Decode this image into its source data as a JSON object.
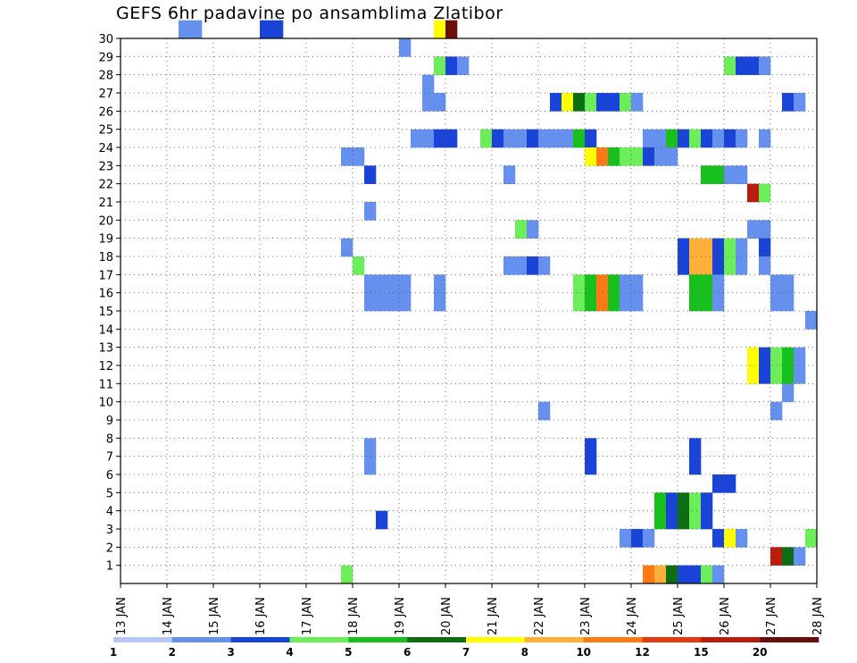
{
  "chart_data": {
    "type": "heatmap",
    "title": "GEFS 6hr padavine po ansamblima Zlatibor",
    "x_ticks": [
      "13 JAN",
      "14 JAN",
      "15 JAN",
      "16 JAN",
      "17 JAN",
      "18 JAN",
      "19 JAN",
      "20 JAN",
      "21 JAN",
      "22 JAN",
      "23 JAN",
      "24 JAN",
      "25 JAN",
      "26 JAN",
      "27 JAN",
      "28 JAN"
    ],
    "y_ticks": [
      "1",
      "2",
      "3",
      "4",
      "5",
      "6",
      "7",
      "8",
      "9",
      "10",
      "11",
      "12",
      "13",
      "14",
      "15",
      "16",
      "17",
      "18",
      "19",
      "20",
      "21",
      "22",
      "23",
      "24",
      "25",
      "26",
      "27",
      "28",
      "29",
      "30"
    ],
    "x_range": [
      "13 JAN 00Z",
      "28 JAN 00Z"
    ],
    "y_range": [
      0,
      30
    ],
    "time_step_hours": 6,
    "grid": "dotted",
    "colorbar": {
      "position": "bottom",
      "labels": [
        "1",
        "2",
        "3",
        "4",
        "5",
        "6",
        "7",
        "8",
        "10",
        "12",
        "15",
        "20"
      ],
      "colors": [
        "#b4c7f5",
        "#6690ee",
        "#1a44d8",
        "#6cee5a",
        "#17c01c",
        "#0b6e12",
        "#ffff00",
        "#ffb03a",
        "#ff7a14",
        "#e63910",
        "#b81d0e",
        "#6a0f0a"
      ]
    },
    "cells": [
      [
        5,
        30,
        1
      ],
      [
        6,
        30,
        1
      ],
      [
        12,
        30,
        2
      ],
      [
        13,
        30,
        2
      ],
      [
        27,
        30,
        6
      ],
      [
        28,
        30,
        11
      ],
      [
        24,
        29,
        1
      ],
      [
        27,
        28,
        3
      ],
      [
        28,
        28,
        2
      ],
      [
        29,
        28,
        1
      ],
      [
        52,
        28,
        3
      ],
      [
        53,
        28,
        2
      ],
      [
        54,
        28,
        2
      ],
      [
        55,
        28,
        1
      ],
      [
        26,
        27,
        1
      ],
      [
        26,
        26,
        1
      ],
      [
        27,
        26,
        1
      ],
      [
        37,
        26,
        2
      ],
      [
        38,
        26,
        6
      ],
      [
        39,
        26,
        5
      ],
      [
        40,
        26,
        3
      ],
      [
        41,
        26,
        2
      ],
      [
        42,
        26,
        2
      ],
      [
        43,
        26,
        3
      ],
      [
        44,
        26,
        1
      ],
      [
        57,
        26,
        2
      ],
      [
        58,
        26,
        1
      ],
      [
        25,
        24,
        1
      ],
      [
        26,
        24,
        1
      ],
      [
        27,
        24,
        2
      ],
      [
        28,
        24,
        2
      ],
      [
        31,
        24,
        3
      ],
      [
        32,
        24,
        2
      ],
      [
        33,
        24,
        1
      ],
      [
        34,
        24,
        1
      ],
      [
        35,
        24,
        2
      ],
      [
        36,
        24,
        1
      ],
      [
        37,
        24,
        1
      ],
      [
        38,
        24,
        1
      ],
      [
        39,
        24,
        4
      ],
      [
        40,
        24,
        2
      ],
      [
        45,
        24,
        1
      ],
      [
        46,
        24,
        1
      ],
      [
        47,
        24,
        4
      ],
      [
        48,
        24,
        2
      ],
      [
        49,
        24,
        3
      ],
      [
        50,
        24,
        2
      ],
      [
        51,
        24,
        1
      ],
      [
        52,
        24,
        2
      ],
      [
        53,
        24,
        1
      ],
      [
        55,
        24,
        1
      ],
      [
        19,
        23,
        1
      ],
      [
        20,
        23,
        1
      ],
      [
        40,
        23,
        6
      ],
      [
        41,
        23,
        8
      ],
      [
        42,
        23,
        4
      ],
      [
        43,
        23,
        3
      ],
      [
        44,
        23,
        3
      ],
      [
        45,
        23,
        2
      ],
      [
        46,
        23,
        1
      ],
      [
        47,
        23,
        1
      ],
      [
        21,
        22,
        2
      ],
      [
        33,
        22,
        1
      ],
      [
        50,
        22,
        4
      ],
      [
        51,
        22,
        4
      ],
      [
        52,
        22,
        1
      ],
      [
        53,
        22,
        1
      ],
      [
        54,
        21,
        10
      ],
      [
        55,
        21,
        3
      ],
      [
        21,
        20,
        1
      ],
      [
        34,
        19,
        3
      ],
      [
        35,
        19,
        1
      ],
      [
        54,
        19,
        1
      ],
      [
        55,
        19,
        1
      ],
      [
        19,
        18,
        1
      ],
      [
        48,
        18,
        2
      ],
      [
        49,
        18,
        7
      ],
      [
        50,
        18,
        7
      ],
      [
        51,
        18,
        2
      ],
      [
        52,
        18,
        3
      ],
      [
        53,
        18,
        1
      ],
      [
        55,
        18,
        2
      ],
      [
        20,
        17,
        3
      ],
      [
        33,
        17,
        1
      ],
      [
        34,
        17,
        1
      ],
      [
        35,
        17,
        2
      ],
      [
        36,
        17,
        1
      ],
      [
        48,
        17,
        2
      ],
      [
        49,
        17,
        7
      ],
      [
        50,
        17,
        7
      ],
      [
        51,
        17,
        2
      ],
      [
        52,
        17,
        3
      ],
      [
        53,
        17,
        1
      ],
      [
        55,
        17,
        1
      ],
      [
        21,
        16,
        1
      ],
      [
        22,
        16,
        1
      ],
      [
        23,
        16,
        1
      ],
      [
        24,
        16,
        1
      ],
      [
        27,
        16,
        1
      ],
      [
        39,
        16,
        3
      ],
      [
        40,
        16,
        4
      ],
      [
        41,
        16,
        8
      ],
      [
        42,
        16,
        4
      ],
      [
        43,
        16,
        1
      ],
      [
        44,
        16,
        1
      ],
      [
        49,
        16,
        4
      ],
      [
        50,
        16,
        4
      ],
      [
        51,
        16,
        1
      ],
      [
        56,
        16,
        1
      ],
      [
        57,
        16,
        1
      ],
      [
        21,
        15,
        1
      ],
      [
        22,
        15,
        1
      ],
      [
        23,
        15,
        1
      ],
      [
        24,
        15,
        1
      ],
      [
        27,
        15,
        1
      ],
      [
        39,
        15,
        3
      ],
      [
        40,
        15,
        4
      ],
      [
        41,
        15,
        8
      ],
      [
        42,
        15,
        4
      ],
      [
        43,
        15,
        1
      ],
      [
        44,
        15,
        1
      ],
      [
        49,
        15,
        4
      ],
      [
        50,
        15,
        4
      ],
      [
        51,
        15,
        1
      ],
      [
        56,
        15,
        1
      ],
      [
        57,
        15,
        1
      ],
      [
        59,
        14,
        1
      ],
      [
        54,
        12,
        6
      ],
      [
        55,
        12,
        2
      ],
      [
        56,
        12,
        3
      ],
      [
        57,
        12,
        4
      ],
      [
        58,
        12,
        1
      ],
      [
        54,
        11,
        6
      ],
      [
        55,
        11,
        2
      ],
      [
        56,
        11,
        3
      ],
      [
        57,
        11,
        4
      ],
      [
        58,
        11,
        1
      ],
      [
        57,
        10,
        1
      ],
      [
        36,
        9,
        1
      ],
      [
        56,
        9,
        1
      ],
      [
        21,
        7,
        1
      ],
      [
        40,
        7,
        2
      ],
      [
        49,
        7,
        2
      ],
      [
        21,
        6,
        1
      ],
      [
        40,
        6,
        2
      ],
      [
        49,
        6,
        2
      ],
      [
        51,
        5,
        2
      ],
      [
        52,
        5,
        2
      ],
      [
        46,
        4,
        4
      ],
      [
        47,
        4,
        2
      ],
      [
        48,
        4,
        5
      ],
      [
        49,
        4,
        3
      ],
      [
        50,
        4,
        2
      ],
      [
        46,
        3,
        4
      ],
      [
        47,
        3,
        2
      ],
      [
        48,
        3,
        5
      ],
      [
        49,
        3,
        3
      ],
      [
        50,
        3,
        2
      ],
      [
        22,
        3,
        2
      ],
      [
        43,
        2,
        1
      ],
      [
        44,
        2,
        2
      ],
      [
        45,
        2,
        1
      ],
      [
        51,
        2,
        2
      ],
      [
        52,
        2,
        6
      ],
      [
        53,
        2,
        1
      ],
      [
        59,
        2,
        3
      ],
      [
        56,
        1,
        10
      ],
      [
        57,
        1,
        5
      ],
      [
        58,
        1,
        1
      ],
      [
        19,
        0,
        3
      ],
      [
        45,
        0,
        8
      ],
      [
        46,
        0,
        7
      ],
      [
        47,
        0,
        5
      ],
      [
        48,
        0,
        2
      ],
      [
        49,
        0,
        2
      ],
      [
        50,
        0,
        3
      ],
      [
        51,
        0,
        1
      ]
    ]
  }
}
